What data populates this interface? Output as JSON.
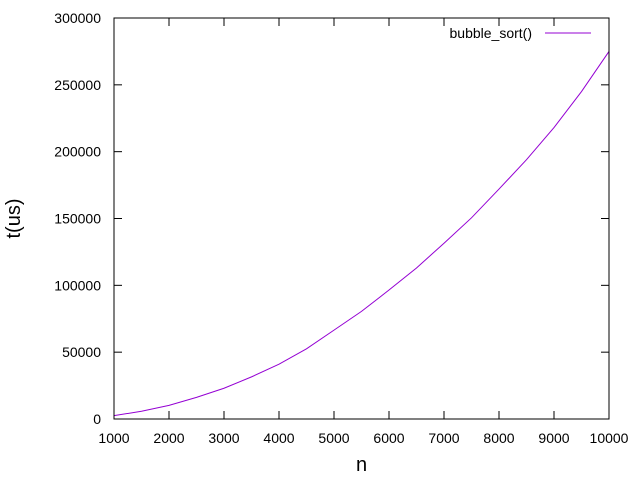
{
  "chart_data": {
    "type": "line",
    "title": "",
    "xlabel": "n",
    "ylabel": "t(us)",
    "xlim": [
      1000,
      10000
    ],
    "ylim": [
      0,
      300000
    ],
    "xticks": [
      1000,
      2000,
      3000,
      4000,
      5000,
      6000,
      7000,
      8000,
      9000,
      10000
    ],
    "yticks": [
      0,
      50000,
      100000,
      150000,
      200000,
      250000,
      300000
    ],
    "grid": false,
    "legend_position": "top-right",
    "series": [
      {
        "name": "bubble_sort()",
        "color": "#9400d3",
        "x": [
          1000,
          1500,
          2000,
          2500,
          3000,
          3500,
          4000,
          4500,
          5000,
          5500,
          6000,
          6500,
          7000,
          7500,
          8000,
          8500,
          9000,
          9500,
          10000
        ],
        "y": [
          2500,
          5800,
          10200,
          16200,
          23000,
          31500,
          41000,
          52500,
          66500,
          80500,
          96500,
          113000,
          131500,
          150500,
          172000,
          194000,
          218000,
          245000,
          275000
        ]
      }
    ]
  }
}
